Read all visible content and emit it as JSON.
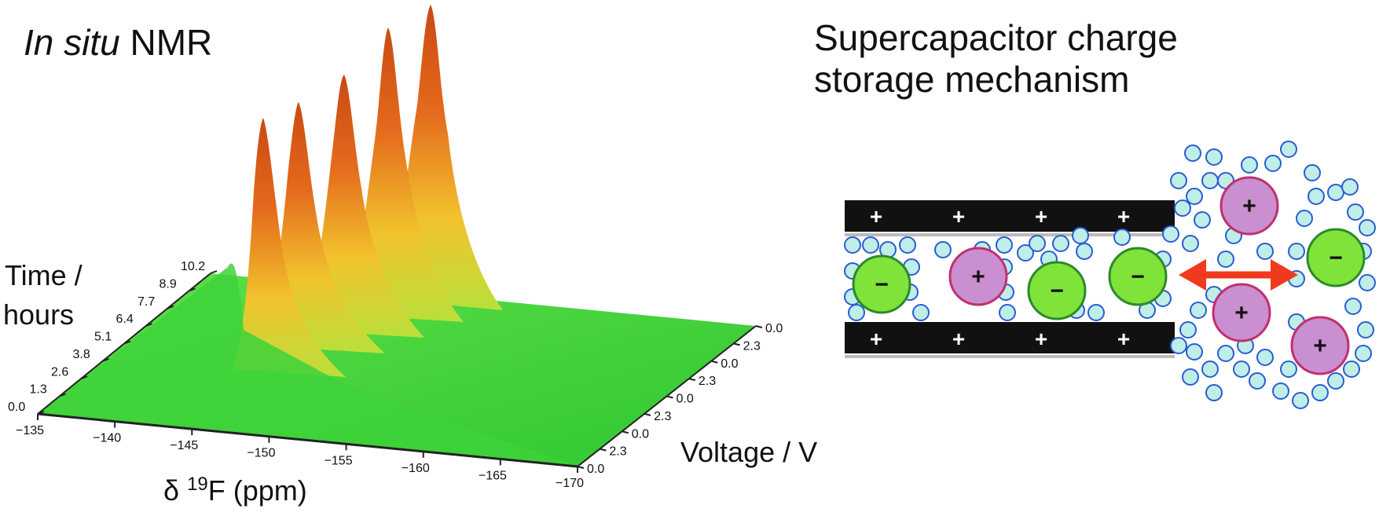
{
  "left_panel": {
    "title_italic": "In situ",
    "title_rest": "NMR",
    "time_axis_label_1": "Time /",
    "time_axis_label_2": "hours",
    "x_axis_label_prefix": "δ",
    "x_axis_label_sup": "19",
    "x_axis_label_rest": "F (ppm)",
    "voltage_axis_label": "Voltage / V",
    "time_ticks": [
      "0.0",
      "1.3",
      "2.6",
      "3.8",
      "5.1",
      "6.4",
      "7.7",
      "8.9",
      "10.2"
    ],
    "ppm_ticks": [
      "−135",
      "−140",
      "−145",
      "−150",
      "−155",
      "−160",
      "−165",
      "−170"
    ],
    "voltage_ticks": [
      "0.0",
      "2.3",
      "0.0",
      "2.3",
      "0.0",
      "2.3",
      "0.0",
      "2.3",
      "0.0"
    ]
  },
  "right_panel": {
    "title_line1": "Supercapacitor charge",
    "title_line2": "storage mechanism",
    "plus_sign": "+",
    "minus_sign": "−"
  },
  "colors": {
    "surface_green": "#3fd93a",
    "peak_orange": "#d9551a",
    "peak_yellow": "#f3e23a",
    "anion_fill": "#7fe33a",
    "cation_fill": "#c98fd0",
    "cation_border": "#c0306e",
    "solvent_fill": "#bfeee6",
    "solvent_border": "#2a5bd6",
    "electrode": "#111111",
    "arrow": "#f03a1c"
  }
}
